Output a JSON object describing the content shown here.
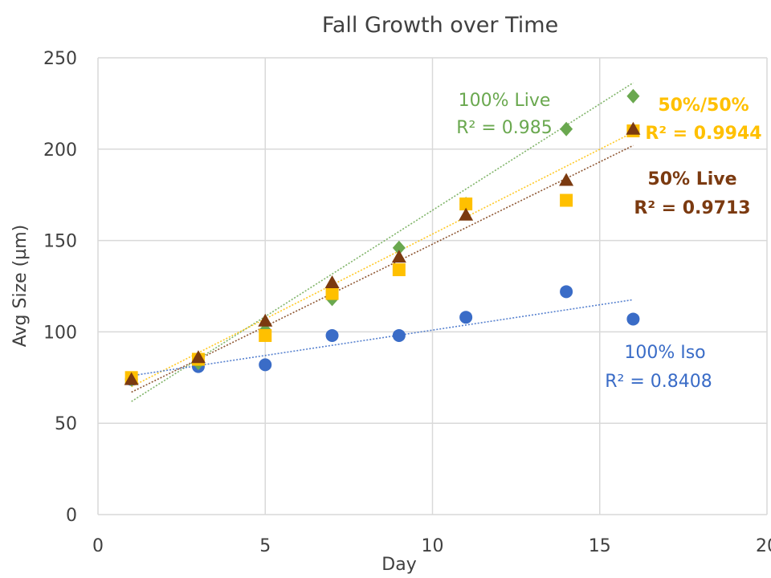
{
  "chart_data": {
    "type": "scatter",
    "title": "Fall Growth over Time",
    "xlabel": "Day",
    "ylabel": "Avg Size (µm)",
    "xlim": [
      0,
      20
    ],
    "ylim": [
      0,
      250
    ],
    "xticks": [
      0,
      5,
      10,
      15,
      20
    ],
    "yticks": [
      0,
      50,
      100,
      150,
      200,
      250
    ],
    "xtick_labels": [
      "0",
      "5",
      "10",
      "15",
      "20"
    ],
    "ytick_labels": [
      "0",
      "50",
      "100",
      "150",
      "200",
      "250"
    ],
    "grid": true,
    "trendlines": "linear, dotted",
    "series": [
      {
        "key": "live",
        "name": "100% Live",
        "r2": "R² = 0.985",
        "marker": "diamond",
        "color": "#6aa84f",
        "x": [
          1,
          3,
          5,
          7,
          9,
          11,
          14,
          16
        ],
        "y": [
          74,
          83,
          101,
          118,
          146,
          170,
          211,
          229
        ],
        "trend": [
          1,
          61.9,
          16,
          236.3
        ]
      },
      {
        "key": "fifty",
        "name": "50%/50%",
        "r2": "R² = 0.9944",
        "marker": "square",
        "color": "#ffc000",
        "x": [
          1,
          3,
          5,
          7,
          9,
          11,
          14,
          16
        ],
        "y": [
          75,
          85,
          98,
          121,
          134,
          170,
          172,
          210
        ],
        "trend": [
          1,
          70.0,
          16,
          209.2
        ]
      },
      {
        "key": "halflive",
        "name": "50% Live",
        "r2": "R² = 0.9713",
        "marker": "triangle",
        "color": "#7b3a10",
        "x": [
          1,
          3,
          5,
          7,
          9,
          11,
          14,
          16
        ],
        "y": [
          74,
          86,
          106,
          127,
          141,
          164,
          183,
          211
        ],
        "trend": [
          1,
          67.0,
          16,
          202.0
        ]
      },
      {
        "key": "iso",
        "name": "100% Iso",
        "r2": "R² = 0.8408",
        "marker": "circle",
        "color": "#3a6cc7",
        "x": [
          1,
          3,
          5,
          7,
          9,
          11,
          14,
          16
        ],
        "y": [
          74,
          81,
          82,
          98,
          98,
          108,
          122,
          107
        ],
        "trend": [
          1,
          76.0,
          16,
          117.6
        ]
      }
    ]
  }
}
